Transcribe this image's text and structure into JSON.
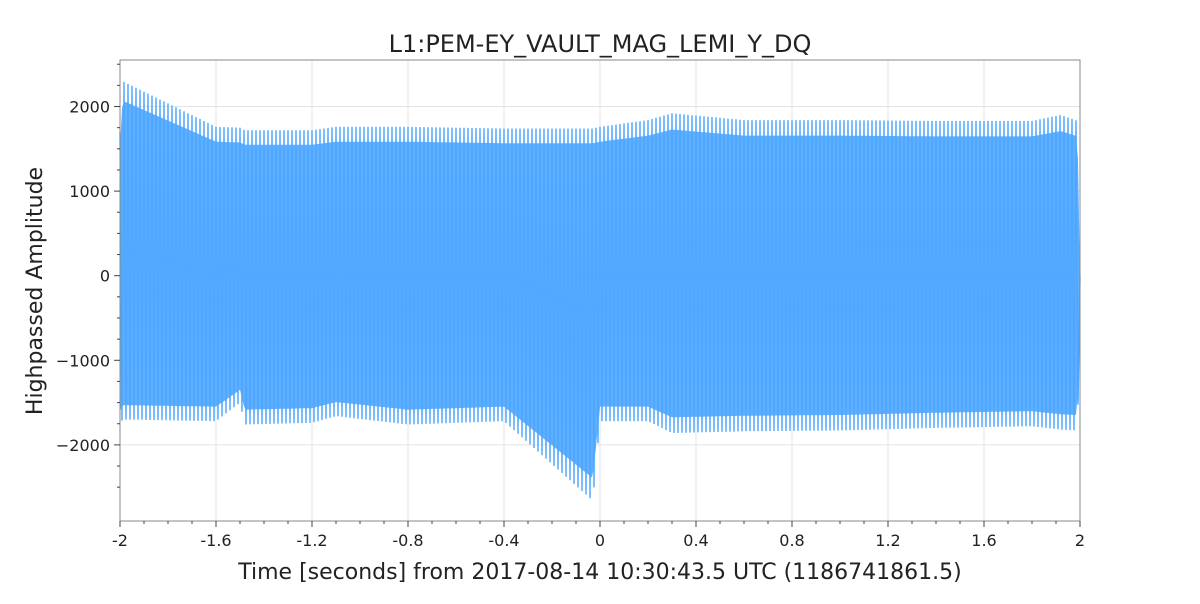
{
  "chart_data": {
    "type": "line",
    "title": "L1:PEM-EY_VAULT_MAG_LEMI_Y_DQ",
    "xlabel": "Time [seconds] from 2017-08-14 10:30:43.5 UTC (1186741861.5)",
    "ylabel": "Highpassed Amplitude",
    "xlim": [
      -2,
      2
    ],
    "ylim": [
      -2900,
      2550
    ],
    "x_ticks": [
      -2,
      -1.6,
      -1.2,
      -0.8,
      -0.4,
      0,
      0.4,
      0.8,
      1.2,
      1.6,
      2
    ],
    "x_tick_labels": [
      "-2",
      "-1.6",
      "-1.2",
      "-0.8",
      "-0.4",
      "0",
      "0.4",
      "0.8",
      "1.2",
      "1.6",
      "2"
    ],
    "y_ticks": [
      2000,
      1000,
      0,
      -1000,
      -2000
    ],
    "y_tick_labels": [
      "2000",
      "1000",
      "0",
      "−1000",
      "−2000"
    ],
    "grid": true,
    "series": [
      {
        "color": "#4da6ff",
        "description_points": {
          "x": [
            -2.0,
            -1.99,
            -1.6,
            -1.5,
            -1.48,
            -1.2,
            -1.1,
            -0.8,
            -0.4,
            -0.03,
            0.0,
            0.2,
            0.3,
            0.6,
            1.0,
            1.4,
            1.8,
            1.92,
            1.99,
            2.0
          ],
          "y_max": [
            1700,
            2300,
            1760,
            1750,
            1720,
            1720,
            1760,
            1760,
            1740,
            1740,
            1760,
            1840,
            1920,
            1840,
            1840,
            1830,
            1830,
            1900,
            1830,
            0
          ],
          "y_min": [
            -1780,
            -1700,
            -1720,
            -1500,
            -1760,
            -1740,
            -1660,
            -1760,
            -1720,
            -2660,
            -1720,
            -1720,
            -1860,
            -1840,
            -1830,
            -1800,
            -1780,
            -1820,
            -1830,
            0
          ]
        }
      }
    ]
  }
}
